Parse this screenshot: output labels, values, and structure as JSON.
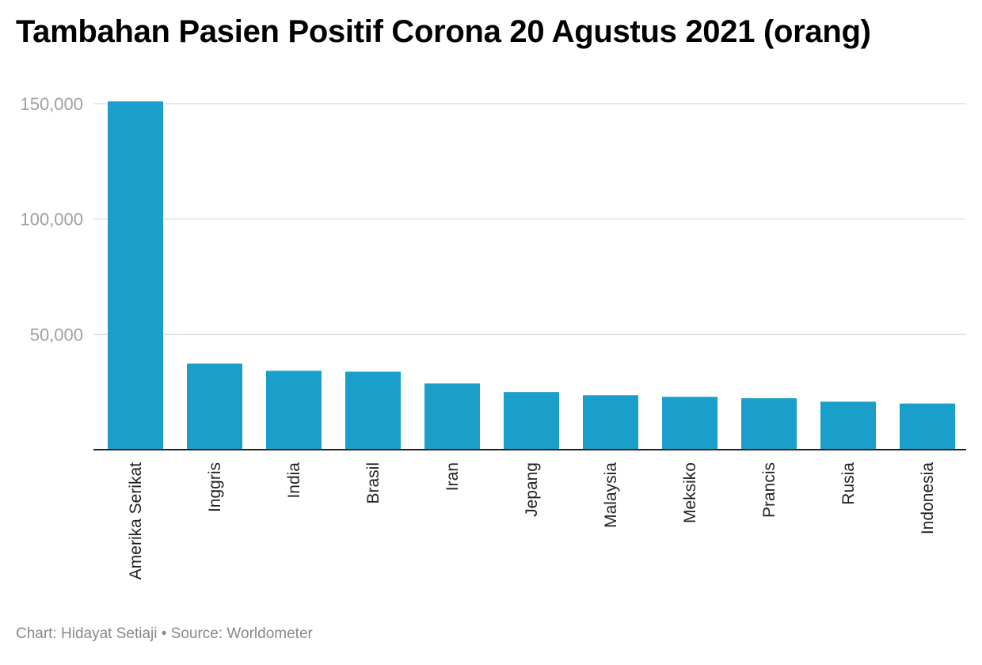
{
  "chart_data": {
    "type": "bar",
    "title": "Tambahan Pasien Positif Corona 20 Agustus 2021 (orang)",
    "categories": [
      "Amerika Serikat",
      "Inggris",
      "India",
      "Brasil",
      "Iran",
      "Jepang",
      "Malaysia",
      "Meksiko",
      "Prancis",
      "Rusia",
      "Indonesia"
    ],
    "values": [
      151000,
      37300,
      34200,
      33800,
      28700,
      25000,
      23600,
      22900,
      22300,
      20800,
      20000
    ],
    "ylim": [
      0,
      150000
    ],
    "yticks": [
      50000,
      100000,
      150000
    ],
    "ytick_labels": [
      "50,000",
      "100,000",
      "150,000"
    ],
    "xlabel": "",
    "ylabel": "",
    "grid": true,
    "bar_color": "#1a9fcb"
  },
  "footer": {
    "credit": "Chart: Hidayat Setiaji • Source: Worldometer"
  }
}
